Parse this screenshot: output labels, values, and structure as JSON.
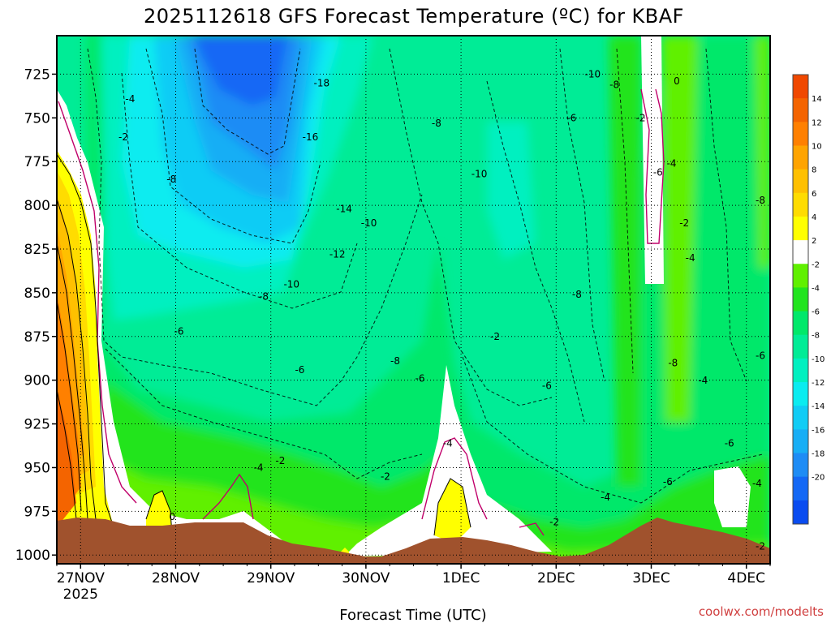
{
  "chart_data": {
    "type": "heatmap",
    "title": "2025112618 GFS Forecast Temperature (ºC) for KBAF",
    "xlabel": "Forecast Time (UTC)",
    "ylabel": "",
    "y_axis": {
      "scale": "pressure",
      "inverted": true,
      "ticks": [
        725,
        750,
        775,
        800,
        825,
        850,
        875,
        900,
        925,
        950,
        975,
        1000
      ],
      "ylim": [
        1005,
        703
      ]
    },
    "x_axis": {
      "ticks": [
        {
          "day": 0,
          "label": "27NOV",
          "sublabel": "2025"
        },
        {
          "day": 1,
          "label": "28NOV"
        },
        {
          "day": 2,
          "label": "29NOV"
        },
        {
          "day": 3,
          "label": "30NOV"
        },
        {
          "day": 4,
          "label": "1DEC"
        },
        {
          "day": 5,
          "label": "2DEC"
        },
        {
          "day": 6,
          "label": "3DEC"
        },
        {
          "day": 7,
          "label": "4DEC"
        }
      ],
      "xlim": [
        -0.25,
        7.25
      ]
    },
    "grid": true,
    "colorbar": {
      "placement": "right",
      "levels": [
        -22,
        -20,
        -18,
        -16,
        -14,
        -12,
        -10,
        -8,
        -6,
        -4,
        -2,
        2,
        4,
        6,
        8,
        10,
        12,
        14,
        16
      ],
      "labels": [
        14,
        12,
        10,
        8,
        6,
        4,
        2,
        -2,
        -4,
        -6,
        -8,
        -10,
        -12,
        -14,
        -16,
        -18,
        -20
      ],
      "colors": [
        "#0a4cf0",
        "#1468f5",
        "#1e8cf5",
        "#18aef5",
        "#10ccf5",
        "#0aecf0",
        "#00f0c0",
        "#00ec96",
        "#00e86a",
        "#22e41e",
        "#60f000",
        "#ffffff",
        "#ffff00",
        "#ffdc00",
        "#ffc000",
        "#ffa400",
        "#ff8000",
        "#f46400",
        "#f04800"
      ]
    },
    "contour_labels": [
      {
        "day": 2.52,
        "p": 731,
        "v": "-18"
      },
      {
        "day": 2.37,
        "p": 762,
        "v": "-16"
      },
      {
        "day": 2.82,
        "p": 803,
        "v": "-14"
      },
      {
        "day": 2.73,
        "p": 829,
        "v": "-12"
      },
      {
        "day": 3.15,
        "p": 811,
        "v": "-10"
      },
      {
        "day": 2.12,
        "p": 846,
        "v": "-10"
      },
      {
        "day": 1.75,
        "p": 853,
        "v": "-8"
      },
      {
        "day": 2.23,
        "p": 895,
        "v": "-6"
      },
      {
        "day": 0.62,
        "p": 873,
        "v": "-6"
      },
      {
        "day": -0.03,
        "p": 740,
        "v": "-4"
      },
      {
        "day": -0.12,
        "p": 762,
        "v": "-2"
      },
      {
        "day": 0.52,
        "p": 786,
        "v": "-8"
      },
      {
        "day": 0.53,
        "p": 979,
        "v": "0"
      },
      {
        "day": 1.68,
        "p": 951,
        "v": "-4"
      },
      {
        "day": 1.97,
        "p": 947,
        "v": "-2"
      },
      {
        "day": 3.37,
        "p": 956,
        "v": "-2"
      },
      {
        "day": 3.5,
        "p": 890,
        "v": "-8"
      },
      {
        "day": 3.83,
        "p": 900,
        "v": "-6"
      },
      {
        "day": 4.2,
        "p": 937,
        "v": "-4"
      },
      {
        "day": 4.62,
        "p": 783,
        "v": "-10"
      },
      {
        "day": 4.05,
        "p": 754,
        "v": "-8"
      },
      {
        "day": 4.83,
        "p": 876,
        "v": "-2"
      },
      {
        "day": 5.52,
        "p": 904,
        "v": "-6"
      },
      {
        "day": 5.62,
        "p": 982,
        "v": "-2"
      },
      {
        "day": 5.85,
        "p": 751,
        "v": "-6"
      },
      {
        "day": 5.92,
        "p": 852,
        "v": "-8"
      },
      {
        "day": 6.13,
        "p": 726,
        "v": "-10"
      },
      {
        "day": 6.42,
        "p": 732,
        "v": "-8"
      },
      {
        "day": 6.3,
        "p": 968,
        "v": "-4"
      },
      {
        "day": 6.77,
        "p": 751,
        "v": "-2"
      },
      {
        "day": 7.25,
        "p": 730,
        "v": "0"
      },
      {
        "day": 7.0,
        "p": 782,
        "v": "-6"
      },
      {
        "day": 7.18,
        "p": 777,
        "v": "-4"
      },
      {
        "day": 7.35,
        "p": 811,
        "v": "-2"
      },
      {
        "day": 7.43,
        "p": 831,
        "v": "-4"
      },
      {
        "day": 7.2,
        "p": 891,
        "v": "-8"
      },
      {
        "day": 7.13,
        "p": 959,
        "v": "-6"
      },
      {
        "day": 7.6,
        "p": 901,
        "v": "-4"
      },
      {
        "day": 7.95,
        "p": 937,
        "v": "-6"
      },
      {
        "day": 8.42,
        "p": 798,
        "v": "-8"
      },
      {
        "day": 8.52,
        "p": 887,
        "v": "-6"
      },
      {
        "day": 8.32,
        "p": 960,
        "v": "-4"
      },
      {
        "day": 8.62,
        "p": 996,
        "v": "-2"
      }
    ]
  },
  "credit": "coolwx.com/modelts"
}
